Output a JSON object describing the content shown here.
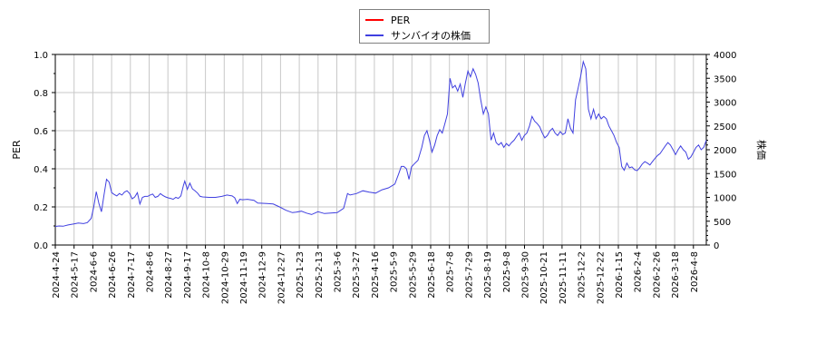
{
  "legend": {
    "items": [
      {
        "label": "PER",
        "color": "#ff0000"
      },
      {
        "label": "サンバイオの株価",
        "color": "#4040e0"
      }
    ]
  },
  "axes": {
    "left": {
      "title": "PER",
      "ticks": [
        "0.0",
        "0.2",
        "0.4",
        "0.6",
        "0.8",
        "1.0"
      ],
      "range": [
        0,
        1.0
      ]
    },
    "right": {
      "title": "株価",
      "ticks": [
        "0",
        "500",
        "1000",
        "1500",
        "2000",
        "2500",
        "3000",
        "3500",
        "4000"
      ],
      "range": [
        0,
        4000
      ]
    },
    "x": {
      "ticks": [
        "2024-4-24",
        "2024-5-17",
        "2024-6-6",
        "2024-6-26",
        "2024-7-17",
        "2024-8-6",
        "2024-8-27",
        "2024-9-17",
        "2024-10-8",
        "2024-10-29",
        "2024-11-19",
        "2024-12-9",
        "2024-12-27",
        "2025-1-23",
        "2025-2-13",
        "2025-3-6",
        "2025-3-27",
        "2025-4-16",
        "2025-5-9",
        "2025-5-29",
        "2025-6-18",
        "2025-7-8",
        "2025-7-29",
        "2025-8-19",
        "2025-9-8",
        "2025-9-30",
        "2025-10-21",
        "2025-11-11",
        "2025-12-2",
        "2025-12-22",
        "2026-1-15",
        "2026-2-4",
        "2026-2-26",
        "2026-3-18",
        "2026-4-8"
      ]
    }
  },
  "chart_data": {
    "type": "line",
    "title": "",
    "xlabel": "",
    "ylabel": "PER",
    "ylabel_right": "株価",
    "ylim": [
      0,
      1.0
    ],
    "ylim_right": [
      0,
      4000
    ],
    "grid": true,
    "legend_position": "top-center",
    "x_ticks": [
      "2024-4-24",
      "2024-5-17",
      "2024-6-6",
      "2024-6-26",
      "2024-7-17",
      "2024-8-6",
      "2024-8-27",
      "2024-9-17",
      "2024-10-8",
      "2024-10-29",
      "2024-11-19",
      "2024-12-9",
      "2024-12-27",
      "2025-1-23",
      "2025-2-13",
      "2025-3-6",
      "2025-3-27",
      "2025-4-16",
      "2025-5-9",
      "2025-5-29",
      "2025-6-18",
      "2025-7-8",
      "2025-7-29",
      "2025-8-19",
      "2025-9-8",
      "2025-9-30",
      "2025-10-21",
      "2025-11-11",
      "2025-12-2",
      "2025-12-22",
      "2026-1-15",
      "2026-2-4",
      "2026-2-26",
      "2026-3-18",
      "2026-4-8"
    ],
    "series": [
      {
        "name": "PER",
        "axis": "left",
        "color": "#ff0000",
        "values": []
      },
      {
        "name": "サンバイオの株価",
        "axis": "right",
        "color": "#4040e0",
        "points": [
          [
            0,
            390
          ],
          [
            3,
            400
          ],
          [
            6,
            395
          ],
          [
            10,
            420
          ],
          [
            14,
            440
          ],
          [
            18,
            460
          ],
          [
            22,
            450
          ],
          [
            25,
            470
          ],
          [
            28,
            560
          ],
          [
            30,
            800
          ],
          [
            32,
            1120
          ],
          [
            34,
            870
          ],
          [
            36,
            700
          ],
          [
            38,
            1050
          ],
          [
            40,
            1380
          ],
          [
            42,
            1320
          ],
          [
            44,
            1100
          ],
          [
            46,
            1060
          ],
          [
            48,
            1030
          ],
          [
            50,
            1080
          ],
          [
            52,
            1050
          ],
          [
            54,
            1110
          ],
          [
            56,
            1140
          ],
          [
            58,
            1080
          ],
          [
            60,
            970
          ],
          [
            62,
            1010
          ],
          [
            64,
            1100
          ],
          [
            66,
            860
          ],
          [
            68,
            1000
          ],
          [
            70,
            1020
          ],
          [
            72,
            1020
          ],
          [
            74,
            1050
          ],
          [
            76,
            1070
          ],
          [
            78,
            1000
          ],
          [
            80,
            1020
          ],
          [
            82,
            1080
          ],
          [
            84,
            1040
          ],
          [
            86,
            1010
          ],
          [
            88,
            990
          ],
          [
            90,
            980
          ],
          [
            92,
            960
          ],
          [
            94,
            1000
          ],
          [
            96,
            980
          ],
          [
            98,
            1030
          ],
          [
            100,
            1250
          ],
          [
            101,
            1340
          ],
          [
            103,
            1170
          ],
          [
            105,
            1300
          ],
          [
            107,
            1180
          ],
          [
            109,
            1140
          ],
          [
            111,
            1090
          ],
          [
            113,
            1020
          ],
          [
            115,
            1010
          ],
          [
            120,
            1000
          ],
          [
            125,
            1000
          ],
          [
            130,
            1020
          ],
          [
            134,
            1050
          ],
          [
            138,
            1030
          ],
          [
            140,
            990
          ],
          [
            142,
            870
          ],
          [
            144,
            960
          ],
          [
            146,
            950
          ],
          [
            150,
            960
          ],
          [
            155,
            940
          ],
          [
            158,
            880
          ],
          [
            165,
            870
          ],
          [
            170,
            860
          ],
          [
            175,
            800
          ],
          [
            180,
            730
          ],
          [
            185,
            680
          ],
          [
            188,
            690
          ],
          [
            192,
            710
          ],
          [
            196,
            670
          ],
          [
            200,
            640
          ],
          [
            205,
            700
          ],
          [
            210,
            660
          ],
          [
            215,
            670
          ],
          [
            220,
            680
          ],
          [
            225,
            770
          ],
          [
            228,
            1080
          ],
          [
            230,
            1050
          ],
          [
            235,
            1080
          ],
          [
            240,
            1140
          ],
          [
            245,
            1110
          ],
          [
            250,
            1090
          ],
          [
            255,
            1160
          ],
          [
            260,
            1200
          ],
          [
            265,
            1280
          ],
          [
            268,
            1500
          ],
          [
            270,
            1650
          ],
          [
            272,
            1650
          ],
          [
            274,
            1600
          ],
          [
            276,
            1380
          ],
          [
            278,
            1640
          ],
          [
            280,
            1700
          ],
          [
            283,
            1780
          ],
          [
            286,
            2050
          ],
          [
            288,
            2300
          ],
          [
            290,
            2400
          ],
          [
            292,
            2200
          ],
          [
            294,
            1950
          ],
          [
            296,
            2100
          ],
          [
            298,
            2300
          ],
          [
            300,
            2420
          ],
          [
            302,
            2350
          ],
          [
            304,
            2550
          ],
          [
            306,
            2750
          ],
          [
            308,
            3500
          ],
          [
            310,
            3300
          ],
          [
            312,
            3350
          ],
          [
            314,
            3230
          ],
          [
            316,
            3380
          ],
          [
            318,
            3100
          ],
          [
            320,
            3400
          ],
          [
            322,
            3650
          ],
          [
            324,
            3530
          ],
          [
            326,
            3700
          ],
          [
            328,
            3580
          ],
          [
            330,
            3400
          ],
          [
            332,
            3050
          ],
          [
            334,
            2750
          ],
          [
            336,
            2900
          ],
          [
            338,
            2750
          ],
          [
            340,
            2200
          ],
          [
            342,
            2350
          ],
          [
            344,
            2150
          ],
          [
            346,
            2100
          ],
          [
            348,
            2150
          ],
          [
            350,
            2050
          ],
          [
            352,
            2130
          ],
          [
            354,
            2080
          ],
          [
            356,
            2150
          ],
          [
            358,
            2200
          ],
          [
            360,
            2280
          ],
          [
            362,
            2350
          ],
          [
            364,
            2200
          ],
          [
            366,
            2300
          ],
          [
            368,
            2350
          ],
          [
            370,
            2500
          ],
          [
            372,
            2700
          ],
          [
            374,
            2600
          ],
          [
            376,
            2550
          ],
          [
            378,
            2480
          ],
          [
            380,
            2350
          ],
          [
            382,
            2250
          ],
          [
            384,
            2300
          ],
          [
            386,
            2400
          ],
          [
            388,
            2450
          ],
          [
            390,
            2350
          ],
          [
            392,
            2300
          ],
          [
            394,
            2380
          ],
          [
            396,
            2320
          ],
          [
            398,
            2350
          ],
          [
            400,
            2650
          ],
          [
            402,
            2450
          ],
          [
            404,
            2350
          ],
          [
            406,
            3050
          ],
          [
            408,
            3300
          ],
          [
            410,
            3550
          ],
          [
            412,
            3850
          ],
          [
            414,
            3700
          ],
          [
            416,
            2850
          ],
          [
            418,
            2650
          ],
          [
            420,
            2850
          ],
          [
            422,
            2650
          ],
          [
            424,
            2750
          ],
          [
            426,
            2650
          ],
          [
            428,
            2700
          ],
          [
            430,
            2650
          ],
          [
            432,
            2500
          ],
          [
            434,
            2400
          ],
          [
            436,
            2300
          ],
          [
            438,
            2150
          ],
          [
            440,
            2050
          ],
          [
            442,
            1650
          ],
          [
            444,
            1570
          ],
          [
            446,
            1720
          ],
          [
            448,
            1620
          ],
          [
            450,
            1640
          ],
          [
            452,
            1580
          ],
          [
            454,
            1560
          ],
          [
            456,
            1620
          ],
          [
            458,
            1700
          ],
          [
            460,
            1750
          ],
          [
            462,
            1720
          ],
          [
            464,
            1680
          ],
          [
            466,
            1750
          ],
          [
            468,
            1820
          ],
          [
            470,
            1880
          ],
          [
            472,
            1920
          ],
          [
            474,
            2000
          ],
          [
            476,
            2080
          ],
          [
            478,
            2150
          ],
          [
            480,
            2100
          ],
          [
            482,
            2000
          ],
          [
            484,
            1900
          ],
          [
            486,
            2000
          ],
          [
            488,
            2080
          ],
          [
            490,
            2000
          ],
          [
            492,
            1950
          ],
          [
            494,
            1800
          ],
          [
            496,
            1850
          ],
          [
            498,
            1950
          ],
          [
            500,
            2050
          ],
          [
            502,
            2100
          ],
          [
            504,
            2000
          ],
          [
            506,
            2050
          ],
          [
            508,
            2200
          ]
        ]
      }
    ]
  }
}
